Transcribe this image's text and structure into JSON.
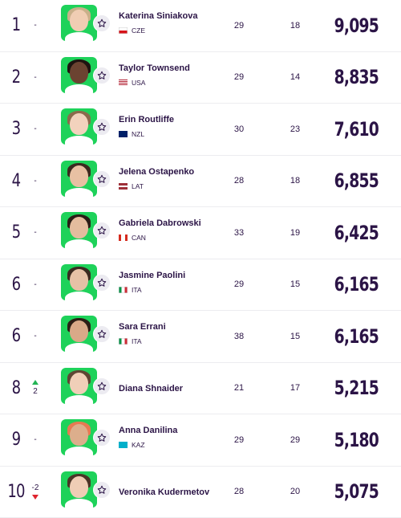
{
  "colors": {
    "text": "#2b1446",
    "avatar_bg": "#1ed25a",
    "move_up": "#22b455",
    "move_down": "#e0242e",
    "divider": "#ececf0"
  },
  "icons": {
    "favorite": "star-outline-icon",
    "up": "triangle-up-icon",
    "down": "triangle-down-icon"
  },
  "rankings": [
    {
      "rank": "1",
      "movement": "-",
      "move_dir": "none",
      "name": "Katerina Siniakova",
      "country": "CZE",
      "flag": "cze",
      "played": "29",
      "dropping": "18",
      "points": "9,095"
    },
    {
      "rank": "2",
      "movement": "-",
      "move_dir": "none",
      "name": "Taylor Townsend",
      "country": "USA",
      "flag": "usa",
      "played": "29",
      "dropping": "14",
      "points": "8,835"
    },
    {
      "rank": "3",
      "movement": "-",
      "move_dir": "none",
      "name": "Erin Routliffe",
      "country": "NZL",
      "flag": "nzl",
      "played": "30",
      "dropping": "23",
      "points": "7,610"
    },
    {
      "rank": "4",
      "movement": "-",
      "move_dir": "none",
      "name": "Jelena Ostapenko",
      "country": "LAT",
      "flag": "lat",
      "played": "28",
      "dropping": "18",
      "points": "6,855"
    },
    {
      "rank": "5",
      "movement": "-",
      "move_dir": "none",
      "name": "Gabriela Dabrowski",
      "country": "CAN",
      "flag": "can",
      "played": "33",
      "dropping": "19",
      "points": "6,425"
    },
    {
      "rank": "6",
      "movement": "-",
      "move_dir": "none",
      "name": "Jasmine Paolini",
      "country": "ITA",
      "flag": "ita",
      "played": "29",
      "dropping": "15",
      "points": "6,165"
    },
    {
      "rank": "6",
      "movement": "-",
      "move_dir": "none",
      "name": "Sara Errani",
      "country": "ITA",
      "flag": "ita",
      "played": "38",
      "dropping": "15",
      "points": "6,165"
    },
    {
      "rank": "8",
      "movement": "2",
      "move_dir": "up",
      "name": "Diana Shnaider",
      "country": "",
      "flag": "",
      "played": "21",
      "dropping": "17",
      "points": "5,215"
    },
    {
      "rank": "9",
      "movement": "-",
      "move_dir": "none",
      "name": "Anna Danilina",
      "country": "KAZ",
      "flag": "kaz",
      "played": "29",
      "dropping": "29",
      "points": "5,180"
    },
    {
      "rank": "10",
      "movement": "-2",
      "move_dir": "down",
      "name": "Veronika Kudermetov",
      "country": "",
      "flag": "",
      "played": "28",
      "dropping": "20",
      "points": "5,075"
    }
  ]
}
